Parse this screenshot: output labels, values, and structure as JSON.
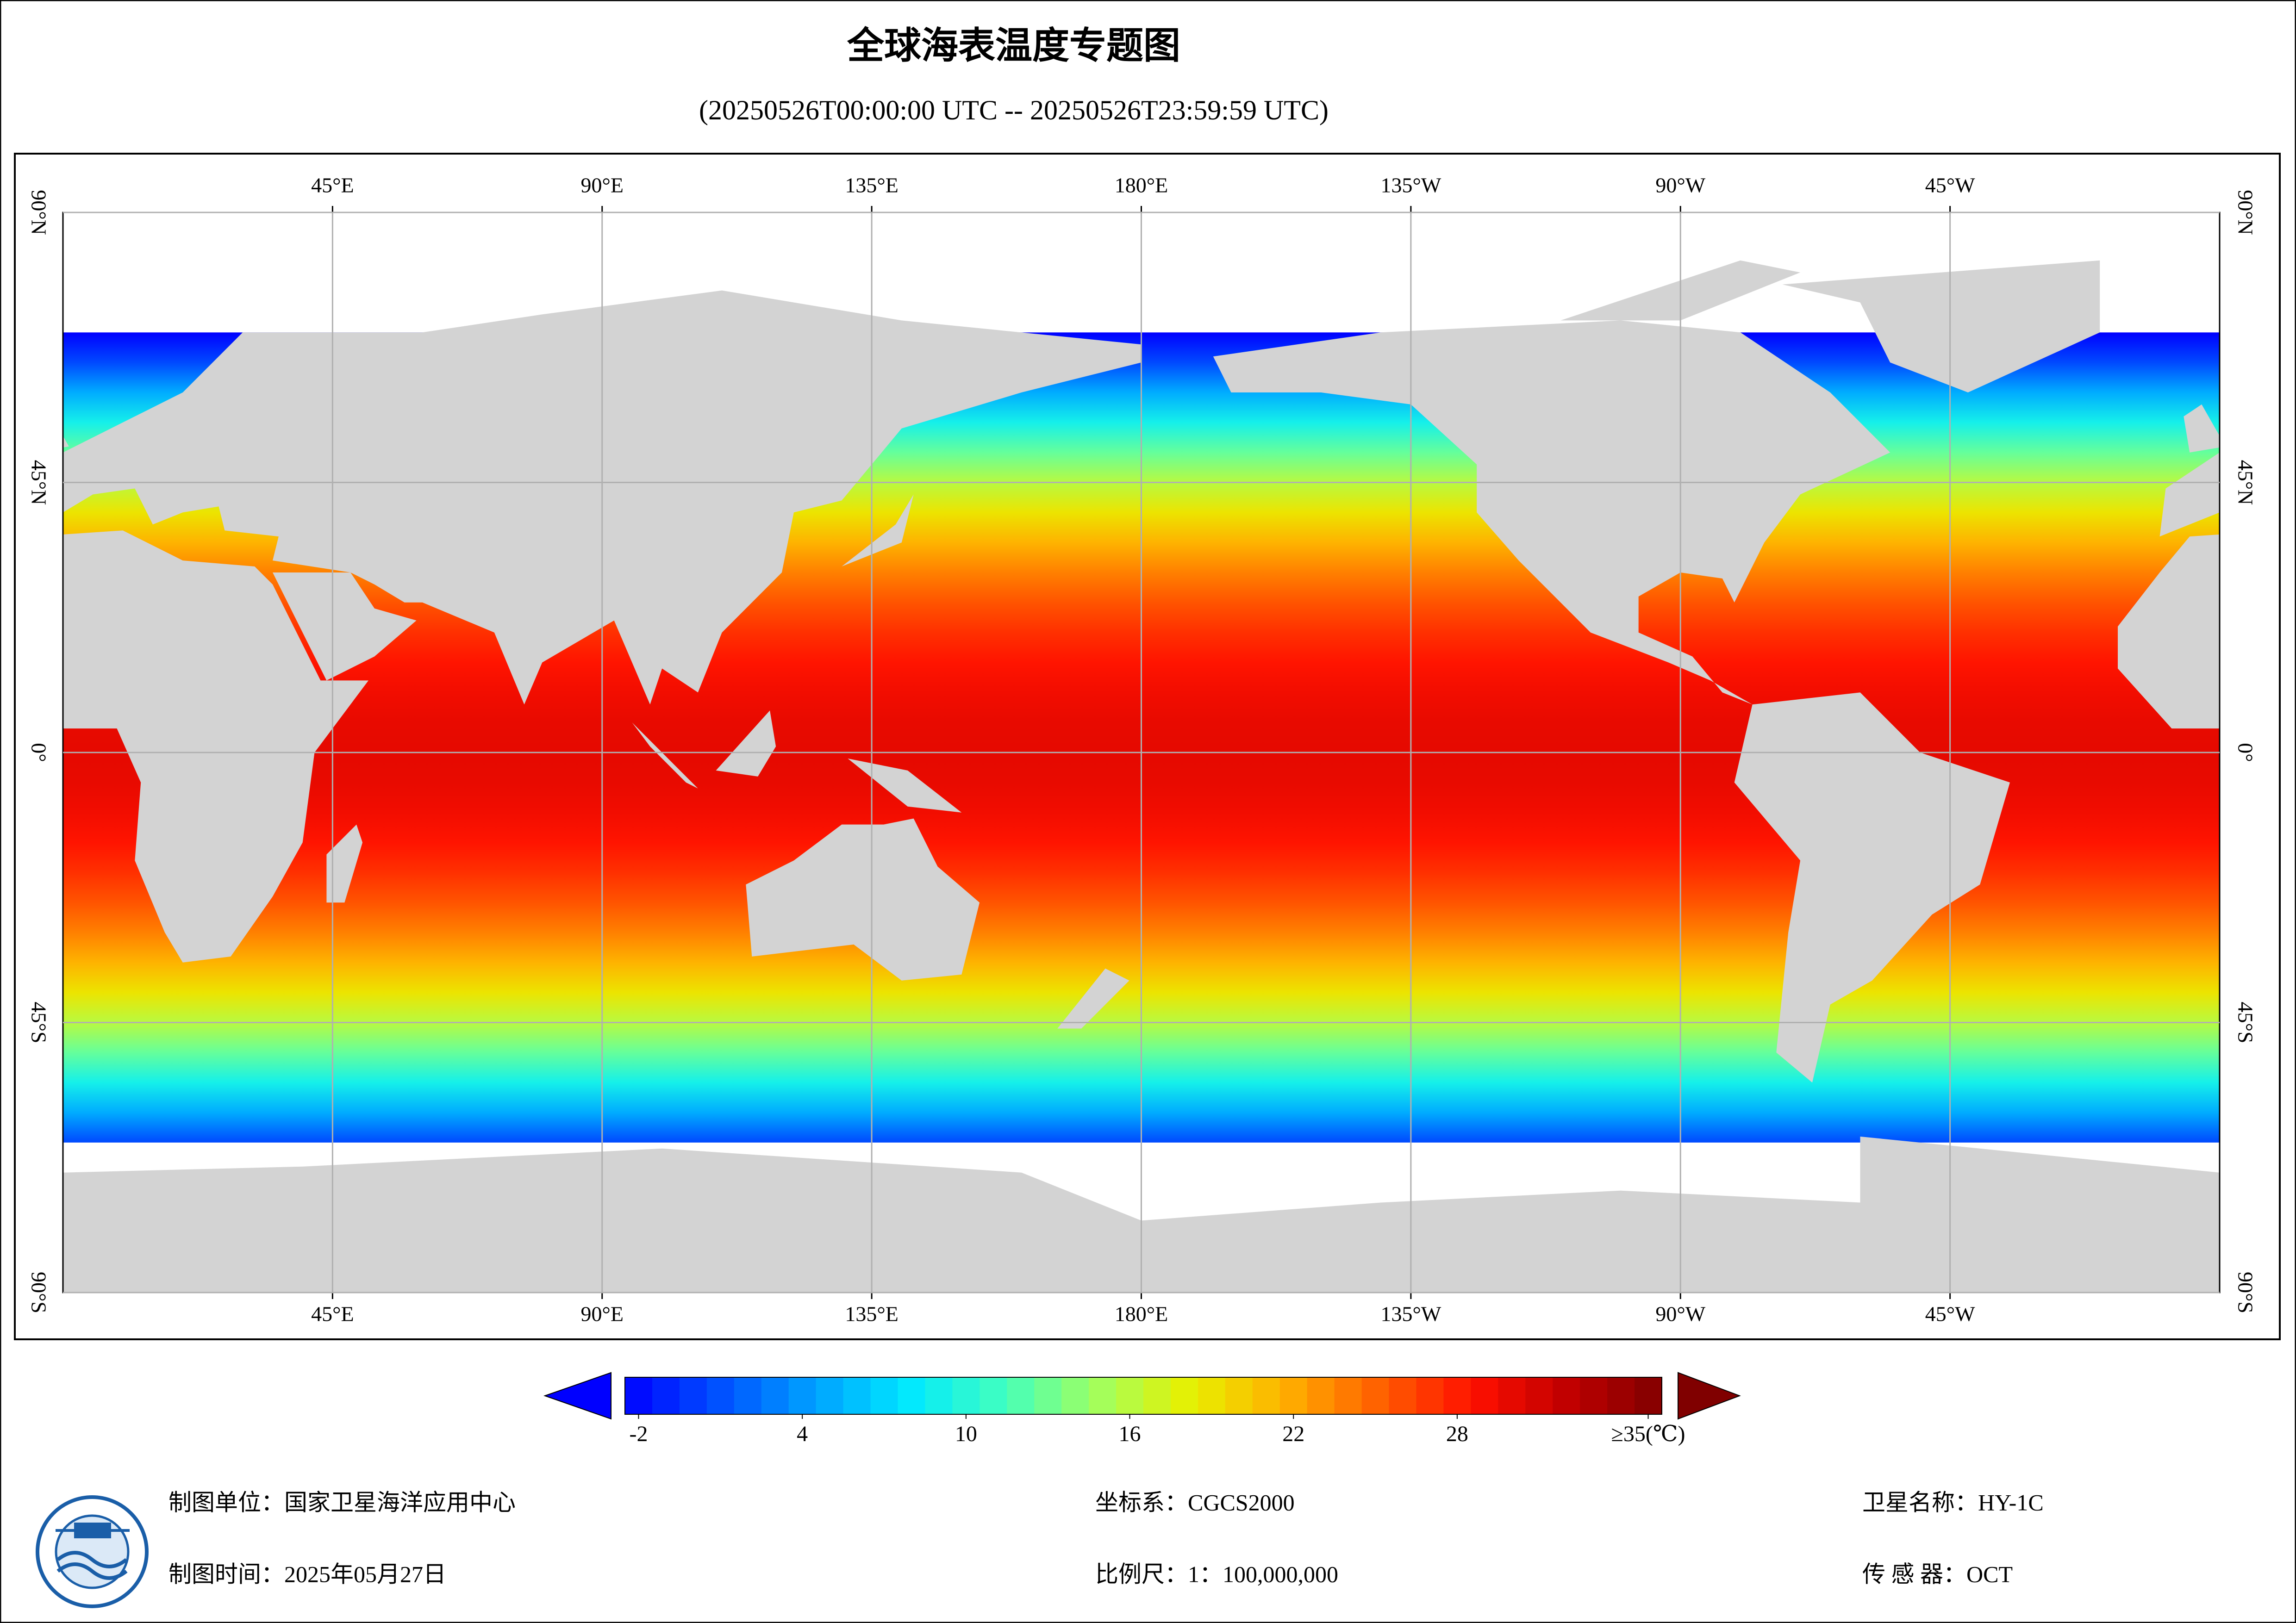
{
  "title": "全球海表温度专题图",
  "subtitle": "(20250526T00:00:00 UTC -- 20250526T23:59:59 UTC)",
  "chart_data": {
    "type": "map",
    "lonlim": [
      0,
      360
    ],
    "latlim": [
      -90,
      90
    ],
    "lonticks": [
      {
        "value": 45,
        "label": "45°E"
      },
      {
        "value": 90,
        "label": "90°E"
      },
      {
        "value": 135,
        "label": "135°E"
      },
      {
        "value": 180,
        "label": "180°E"
      },
      {
        "value": 225,
        "label": "135°W"
      },
      {
        "value": 270,
        "label": "90°W"
      },
      {
        "value": 315,
        "label": "45°W"
      }
    ],
    "latticks": [
      {
        "value": 90,
        "label": "90°N"
      },
      {
        "value": 45,
        "label": "45°N"
      },
      {
        "value": 0,
        "label": "0°"
      },
      {
        "value": -45,
        "label": "45°S"
      },
      {
        "value": -90,
        "label": "90°S"
      }
    ],
    "grid": true,
    "land_color": "#d3d3d3",
    "colorbar": {
      "range": [
        -2.5,
        35.5
      ],
      "ticks": [
        -2,
        4,
        10,
        16,
        22,
        28,
        {
          "value": 35,
          "label": "≥35(℃)"
        }
      ],
      "colors": [
        "#0000ff",
        "#0050ff",
        "#00a0ff",
        "#00e8ff",
        "#40ffc0",
        "#a0ff60",
        "#e8f000",
        "#ffb000",
        "#ff6000",
        "#ff1000",
        "#c00000",
        "#800000"
      ]
    }
  },
  "footer": {
    "unit": "制图单位：国家卫星海洋应用中心",
    "date": "制图时间：2025年05月27日",
    "crs": "坐标系：CGCS2000",
    "scale": "比例尺：1：100,000,000",
    "satellite": "卫星名称：HY-1C",
    "sensor": "传 感 器：OCT"
  }
}
